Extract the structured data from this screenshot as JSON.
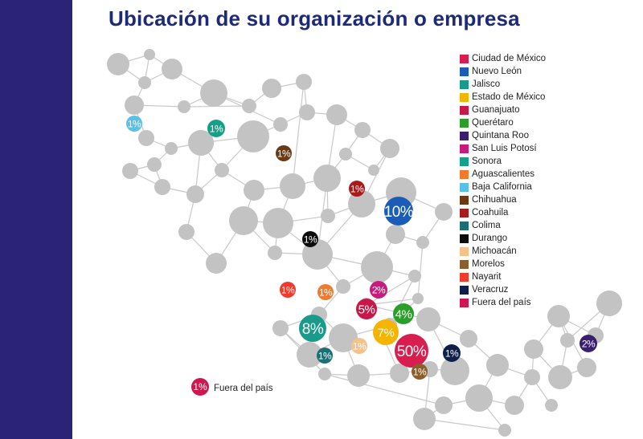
{
  "title": "Ubicación de su organización o empresa",
  "colors": {
    "sidebar": "#2b2378",
    "node": "#c3c3c3",
    "edge": "#c9c9c9",
    "title": "#1c2a78"
  },
  "legend": [
    {
      "label": "Ciudad de México",
      "color": "#d81e4f"
    },
    {
      "label": "Nuevo León",
      "color": "#1b5cb8"
    },
    {
      "label": "Jalisco",
      "color": "#1a9a8a"
    },
    {
      "label": "Estado de México",
      "color": "#f5b400"
    },
    {
      "label": "Guanajuato",
      "color": "#c8184a"
    },
    {
      "label": "Querétaro",
      "color": "#2a9d2a"
    },
    {
      "label": "Quintana Roo",
      "color": "#3a1f6e"
    },
    {
      "label": "San Luis Potosí",
      "color": "#c81c7c"
    },
    {
      "label": "Sonora",
      "color": "#16a08a"
    },
    {
      "label": "Aguascalientes",
      "color": "#f07a2e"
    },
    {
      "label": "Baja California",
      "color": "#59c0e8"
    },
    {
      "label": "Chihuahua",
      "color": "#6b3a14"
    },
    {
      "label": "Coahuila",
      "color": "#a61c1c"
    },
    {
      "label": "Colima",
      "color": "#1e6e73"
    },
    {
      "label": "Durango",
      "color": "#0c0c0c"
    },
    {
      "label": "Michoacán",
      "color": "#f5c38a"
    },
    {
      "label": "Morelos",
      "color": "#8a5f2e"
    },
    {
      "label": "Nayarit",
      "color": "#ee3b2c"
    },
    {
      "label": "Veracruz",
      "color": "#0f1f4a"
    },
    {
      "label": "Fuera del país",
      "color": "#d0164f"
    }
  ],
  "chart_data": {
    "type": "bubble-map",
    "series": [
      {
        "name": "Ciudad de México",
        "value": 50,
        "label": "50%"
      },
      {
        "name": "Nuevo León",
        "value": 10,
        "label": "10%"
      },
      {
        "name": "Jalisco",
        "value": 8,
        "label": "8%"
      },
      {
        "name": "Estado de México",
        "value": 7,
        "label": "7%"
      },
      {
        "name": "Guanajuato",
        "value": 5,
        "label": "5%"
      },
      {
        "name": "Querétaro",
        "value": 4,
        "label": "4%"
      },
      {
        "name": "Quintana Roo",
        "value": 2,
        "label": "2%"
      },
      {
        "name": "San Luis Potosí",
        "value": 2,
        "label": "2%"
      },
      {
        "name": "Sonora",
        "value": 1,
        "label": "1%"
      },
      {
        "name": "Aguascalientes",
        "value": 1,
        "label": "1%"
      },
      {
        "name": "Baja California",
        "value": 1,
        "label": "1%"
      },
      {
        "name": "Chihuahua",
        "value": 1,
        "label": "1%"
      },
      {
        "name": "Coahuila",
        "value": 1,
        "label": "1%"
      },
      {
        "name": "Colima",
        "value": 1,
        "label": "1%"
      },
      {
        "name": "Durango",
        "value": 1,
        "label": "1%"
      },
      {
        "name": "Michoacán",
        "value": 1,
        "label": "1%"
      },
      {
        "name": "Morelos",
        "value": 1,
        "label": "1%"
      },
      {
        "name": "Nayarit",
        "value": 1,
        "label": "1%"
      },
      {
        "name": "Veracruz",
        "value": 1,
        "label": "1%"
      },
      {
        "name": "Fuera del país",
        "value": 1,
        "label": "1%"
      }
    ],
    "outside_note": {
      "label": "1%",
      "text": "Fuera del país"
    }
  }
}
